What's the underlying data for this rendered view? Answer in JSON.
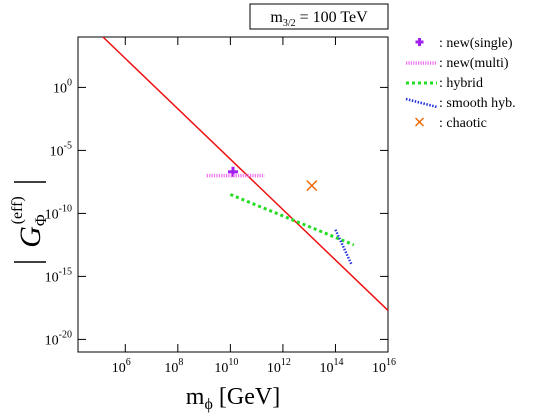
{
  "chart_data": {
    "type": "scatter",
    "annotation": {
      "m_sym": "m",
      "m_sub": "3/2",
      "rest": " = 100 TeV"
    },
    "xlabel": {
      "main": "m",
      "sub": "ϕ",
      "unit": " [GeV]"
    },
    "ylabel": {
      "main": "G",
      "sub": "Φ",
      "sup": "(eff)"
    },
    "x_log10_range": [
      4.2,
      16
    ],
    "y_log10_range": [
      -21,
      4
    ],
    "x_ticks": [
      {
        "exp": 6,
        "base": "10",
        "label": "6"
      },
      {
        "exp": 8,
        "base": "10",
        "label": "8"
      },
      {
        "exp": 10,
        "base": "10",
        "label": "10"
      },
      {
        "exp": 12,
        "base": "10",
        "label": "12"
      },
      {
        "exp": 14,
        "base": "10",
        "label": "14"
      },
      {
        "exp": 16,
        "base": "10",
        "label": "16"
      }
    ],
    "y_ticks": [
      {
        "exp": 0,
        "base": "10",
        "label": "0"
      },
      {
        "exp": -5,
        "base": "10",
        "label": "-5"
      },
      {
        "exp": -10,
        "base": "10",
        "label": "-10"
      },
      {
        "exp": -15,
        "base": "10",
        "label": "-15"
      },
      {
        "exp": -20,
        "base": "10",
        "label": "-20"
      }
    ],
    "red_line": {
      "color": "#ee1111",
      "points": [
        [
          5.15,
          4.0
        ],
        [
          16.0,
          -17.7
        ]
      ]
    },
    "series": [
      {
        "name": ": new(single)",
        "style": "plus",
        "color": "#a020f0",
        "points": [
          [
            10.1,
            -6.7
          ]
        ]
      },
      {
        "name": ": new(multi)",
        "style": "dotted-line",
        "color": "#f070f0",
        "points": [
          [
            9.1,
            -7.0
          ],
          [
            11.3,
            -7.0
          ]
        ]
      },
      {
        "name": ": hybrid",
        "style": "dotted-line",
        "color": "#22dd22",
        "points": [
          [
            10.0,
            -8.5
          ],
          [
            14.7,
            -12.5
          ]
        ]
      },
      {
        "name": ": smooth hyb.",
        "style": "dotted-line",
        "color": "#2233dd",
        "points": [
          [
            14.0,
            -11.3
          ],
          [
            14.6,
            -14.0
          ]
        ]
      },
      {
        "name": ": chaotic",
        "style": "cross",
        "color": "#ee6600",
        "points": [
          [
            13.1,
            -7.8
          ]
        ]
      }
    ]
  }
}
